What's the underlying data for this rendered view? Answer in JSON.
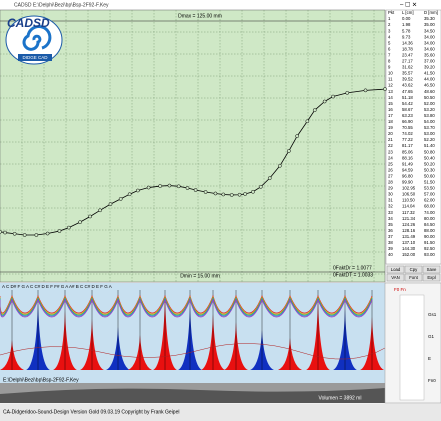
{
  "window": {
    "title": "CADSD E:\\Delphi\\Bezi\\bp\\Bsp-2F92-F.Key"
  },
  "logo": {
    "name": "CADSD",
    "tagline": "DIDGE CAD"
  },
  "plot": {
    "dmax": "Dmax = 125.00 mm",
    "dmin": "Dmin = 15.00 mm",
    "fakt1": "0FaktDr = 1.0077",
    "fakt2": "0FaktDT = 1.0033",
    "xlim": [
      0,
      152
    ],
    "ylim": [
      15,
      125
    ]
  },
  "table": {
    "header": [
      "Pkt",
      "L [cm]",
      "D [mm]"
    ],
    "rows": [
      [
        "1",
        "0.00",
        "35.30"
      ],
      [
        "2",
        "1.98",
        "35.00"
      ],
      [
        "3",
        "5.78",
        "34.50"
      ],
      [
        "4",
        "9.73",
        "34.00"
      ],
      [
        "5",
        "14.36",
        "34.00"
      ],
      [
        "6",
        "18.78",
        "34.60"
      ],
      [
        "7",
        "23.47",
        "35.60"
      ],
      [
        "8",
        "27.17",
        "37.00"
      ],
      [
        "9",
        "31.62",
        "39.20"
      ],
      [
        "10",
        "35.57",
        "41.50"
      ],
      [
        "11",
        "39.52",
        "44.00"
      ],
      [
        "12",
        "43.62",
        "46.50"
      ],
      [
        "13",
        "47.65",
        "48.60"
      ],
      [
        "14",
        "51.18",
        "50.50"
      ],
      [
        "15",
        "54.42",
        "52.00"
      ],
      [
        "16",
        "58.67",
        "53.20"
      ],
      [
        "17",
        "63.23",
        "53.80"
      ],
      [
        "18",
        "66.90",
        "54.00"
      ],
      [
        "19",
        "70.55",
        "53.70"
      ],
      [
        "20",
        "74.02",
        "53.00"
      ],
      [
        "21",
        "77.22",
        "52.20"
      ],
      [
        "22",
        "81.17",
        "51.40"
      ],
      [
        "23",
        "85.06",
        "50.80"
      ],
      [
        "24",
        "88.16",
        "50.40"
      ],
      [
        "25",
        "91.49",
        "50.20"
      ],
      [
        "26",
        "94.59",
        "50.30"
      ],
      [
        "27",
        "96.80",
        "50.60"
      ],
      [
        "28",
        "99.90",
        "51.50"
      ],
      [
        "29",
        "102.95",
        "53.50"
      ],
      [
        "30",
        "106.50",
        "57.00"
      ],
      [
        "31",
        "110.50",
        "62.00"
      ],
      [
        "32",
        "114.04",
        "68.00"
      ],
      [
        "33",
        "117.32",
        "74.00"
      ],
      [
        "34",
        "121.34",
        "80.00"
      ],
      [
        "35",
        "124.26",
        "84.50"
      ],
      [
        "36",
        "128.16",
        "88.00"
      ],
      [
        "37",
        "131.49",
        "90.00"
      ],
      [
        "38",
        "137.10",
        "91.50"
      ],
      [
        "39",
        "144.30",
        "92.50"
      ],
      [
        "40",
        "152.00",
        "93.00"
      ]
    ]
  },
  "buttons": [
    "Load",
    "Cpy",
    "Save",
    "VAN",
    "Font",
    "Expl"
  ],
  "side": {
    "top": "F0 Fn",
    "labels": [
      "Gs1",
      "G1",
      "E",
      "Fn0"
    ]
  },
  "spectrum": {
    "notes": "A C D# F G A C C# D E F F# G A A# B C C# D E F G A",
    "file": "E:\\Delphi\\Bezi\\bp\\Bsp-2F92-F.Key",
    "volume": "Volumen = 3892 ml"
  },
  "status": "CA-Didgeridoo-Sound-Design Version Gold 09.03.19 Copyright by Frank Geipel"
}
